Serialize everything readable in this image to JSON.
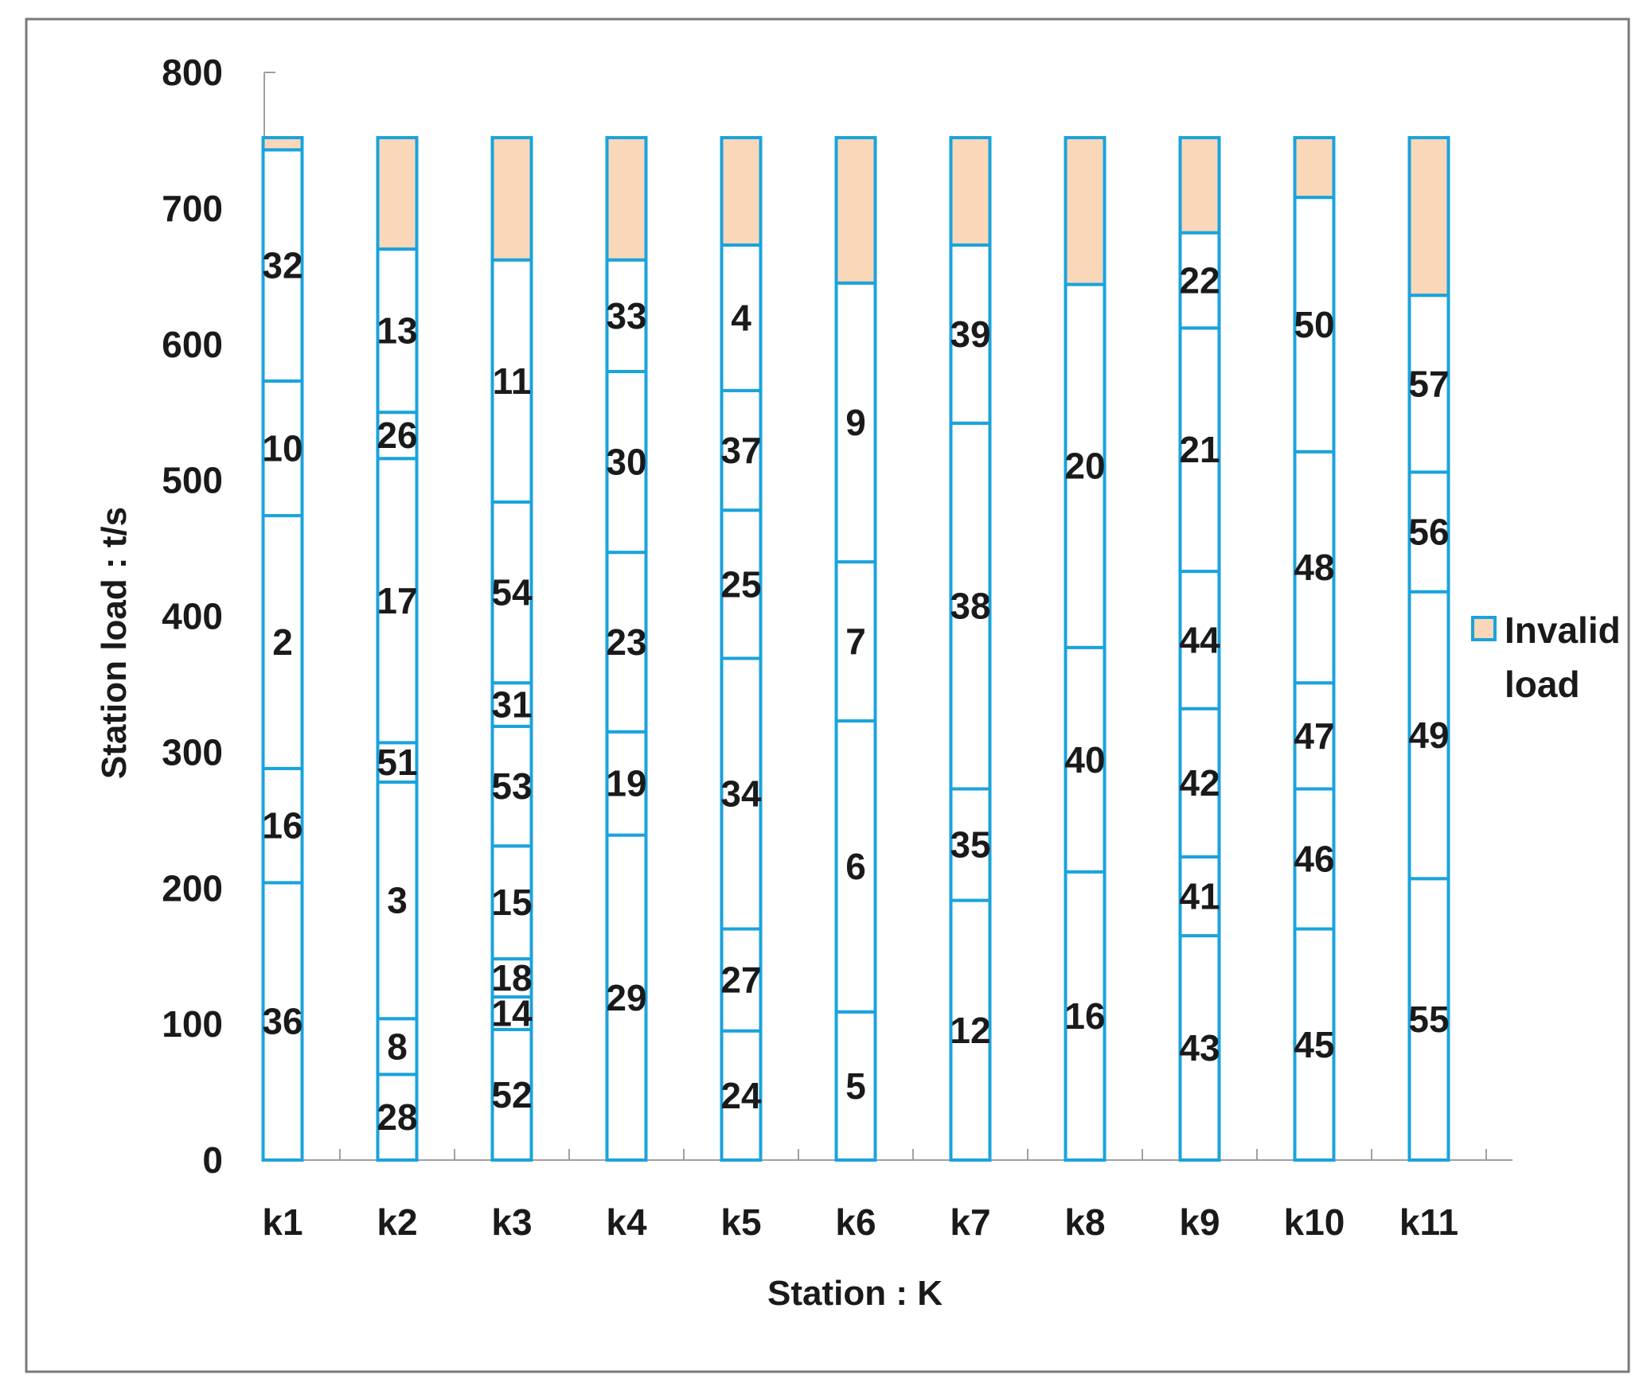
{
  "chart_data": {
    "type": "bar",
    "stacked": true,
    "xlabel": "Station : K",
    "ylabel": "Station load : t/s",
    "ylim": [
      0,
      800
    ],
    "yticks": [
      0,
      100,
      200,
      300,
      400,
      500,
      600,
      700,
      800
    ],
    "grid": false,
    "capacity": 752,
    "legend": {
      "position": "right",
      "entries": [
        {
          "name": "Invalid load",
          "lines": [
            "Invalid",
            "load"
          ],
          "color": "#fad7b8"
        }
      ]
    },
    "colors": {
      "outline": "#1aa3dc",
      "invalid": "#fad7b8",
      "segment_fill": "#ffffff",
      "frame": "#7a7a7a"
    },
    "stations": [
      {
        "name": "k1",
        "tasks": [
          {
            "label": "36",
            "start": 0,
            "end": 204
          },
          {
            "label": "16",
            "start": 204,
            "end": 288
          },
          {
            "label": "2",
            "start": 288,
            "end": 474
          },
          {
            "label": "10",
            "start": 474,
            "end": 573
          },
          {
            "label": "32",
            "start": 573,
            "end": 743
          }
        ]
      },
      {
        "name": "k2",
        "tasks": [
          {
            "label": "28",
            "start": 0,
            "end": 63
          },
          {
            "label": "8",
            "start": 63,
            "end": 104
          },
          {
            "label": "3",
            "start": 104,
            "end": 278
          },
          {
            "label": "51",
            "start": 278,
            "end": 307
          },
          {
            "label": "17",
            "start": 307,
            "end": 516
          },
          {
            "label": "26",
            "start": 516,
            "end": 550
          },
          {
            "label": "13",
            "start": 550,
            "end": 670
          }
        ]
      },
      {
        "name": "k3",
        "tasks": [
          {
            "label": "52",
            "start": 0,
            "end": 96
          },
          {
            "label": "14",
            "start": 96,
            "end": 120
          },
          {
            "label": "18",
            "start": 120,
            "end": 148
          },
          {
            "label": "15",
            "start": 148,
            "end": 231
          },
          {
            "label": "53",
            "start": 231,
            "end": 319
          },
          {
            "label": "31",
            "start": 319,
            "end": 351
          },
          {
            "label": "54",
            "start": 351,
            "end": 484
          },
          {
            "label": "11",
            "start": 484,
            "end": 662
          }
        ]
      },
      {
        "name": "k4",
        "tasks": [
          {
            "label": "29",
            "start": 0,
            "end": 239
          },
          {
            "label": "19",
            "start": 239,
            "end": 315
          },
          {
            "label": "23",
            "start": 315,
            "end": 447
          },
          {
            "label": "30",
            "start": 447,
            "end": 580
          },
          {
            "label": "33",
            "start": 580,
            "end": 662
          }
        ]
      },
      {
        "name": "k5",
        "tasks": [
          {
            "label": "24",
            "start": 0,
            "end": 95
          },
          {
            "label": "27",
            "start": 95,
            "end": 170
          },
          {
            "label": "34",
            "start": 170,
            "end": 369
          },
          {
            "label": "25",
            "start": 369,
            "end": 478
          },
          {
            "label": "37",
            "start": 478,
            "end": 566
          },
          {
            "label": "4",
            "start": 566,
            "end": 673
          }
        ]
      },
      {
        "name": "k6",
        "tasks": [
          {
            "label": "5",
            "start": 0,
            "end": 109
          },
          {
            "label": "6",
            "start": 109,
            "end": 323
          },
          {
            "label": "7",
            "start": 323,
            "end": 440
          },
          {
            "label": "9",
            "start": 440,
            "end": 645
          }
        ]
      },
      {
        "name": "k7",
        "tasks": [
          {
            "label": "12",
            "start": 0,
            "end": 191
          },
          {
            "label": "35",
            "start": 191,
            "end": 273
          },
          {
            "label": "38",
            "start": 273,
            "end": 542
          },
          {
            "label": "39",
            "start": 542,
            "end": 673
          }
        ]
      },
      {
        "name": "k8",
        "tasks": [
          {
            "label": "16",
            "start": 0,
            "end": 212
          },
          {
            "label": "40",
            "start": 212,
            "end": 377
          },
          {
            "label": "20",
            "start": 377,
            "end": 644
          }
        ]
      },
      {
        "name": "k9",
        "tasks": [
          {
            "label": "43",
            "start": 0,
            "end": 165
          },
          {
            "label": "41",
            "start": 165,
            "end": 223
          },
          {
            "label": "42",
            "start": 223,
            "end": 332
          },
          {
            "label": "44",
            "start": 332,
            "end": 433
          },
          {
            "label": "21",
            "start": 433,
            "end": 612
          },
          {
            "label": "22",
            "start": 612,
            "end": 682
          }
        ]
      },
      {
        "name": "k10",
        "tasks": [
          {
            "label": "45",
            "start": 0,
            "end": 170
          },
          {
            "label": "46",
            "start": 170,
            "end": 273
          },
          {
            "label": "47",
            "start": 273,
            "end": 351
          },
          {
            "label": "48",
            "start": 351,
            "end": 521
          },
          {
            "label": "50",
            "start": 521,
            "end": 708
          }
        ]
      },
      {
        "name": "k11",
        "tasks": [
          {
            "label": "55",
            "start": 0,
            "end": 207
          },
          {
            "label": "49",
            "start": 207,
            "end": 418
          },
          {
            "label": "56",
            "start": 418,
            "end": 506
          },
          {
            "label": "57",
            "start": 506,
            "end": 636
          }
        ]
      }
    ]
  }
}
